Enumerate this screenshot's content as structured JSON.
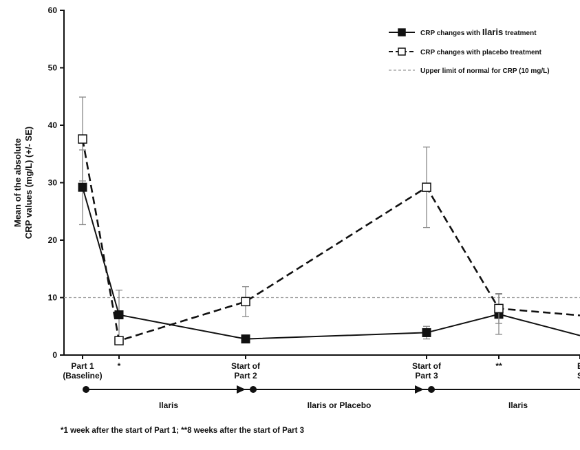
{
  "chart_data": {
    "type": "line",
    "title": "",
    "ylabel_lines": [
      "Mean of the absolute",
      "CRP values (mg/L) (+/- SE)"
    ],
    "ylim": [
      0,
      60
    ],
    "yticks": [
      0,
      10,
      20,
      30,
      40,
      50,
      60
    ],
    "categories": [
      {
        "lines": [
          "Part 1",
          "(Baseline)"
        ]
      },
      {
        "lines": [
          "*"
        ]
      },
      {
        "lines": [
          "Start of",
          "Part 2"
        ]
      },
      {
        "lines": [
          "Start of",
          "Part 3"
        ]
      },
      {
        "lines": [
          "**"
        ]
      },
      {
        "lines": [
          "E",
          "S"
        ]
      }
    ],
    "reference_line": {
      "value": 10,
      "label": "Upper limit of normal for CRP (10 mg/L)"
    },
    "series": [
      {
        "legend_prefix": "CRP changes with",
        "legend_highlight": "Ilaris",
        "legend_suffix": "treatment",
        "style": "solid",
        "marker": "filled-square",
        "color": "#111111",
        "values": [
          29.2,
          7.0,
          2.8,
          3.9,
          7.1,
          3.4
        ],
        "error": [
          6.5,
          4.3,
          0.4,
          1.1,
          3.5,
          null
        ]
      },
      {
        "legend_prefix": "CRP changes with",
        "legend_highlight": "placebo",
        "legend_suffix": "treatment",
        "style": "dashed",
        "marker": "open-square",
        "color": "#111111",
        "values": [
          37.6,
          2.5,
          9.3,
          29.2,
          8.1,
          6.9
        ],
        "error": [
          7.3,
          null,
          2.6,
          7.0,
          2.6,
          null
        ]
      }
    ],
    "phases": [
      "Ilaris",
      "Ilaris or Placebo",
      "Ilaris"
    ],
    "footnote": "*1 week after the start of Part 1; **8 weeks after the start of Part 3"
  }
}
